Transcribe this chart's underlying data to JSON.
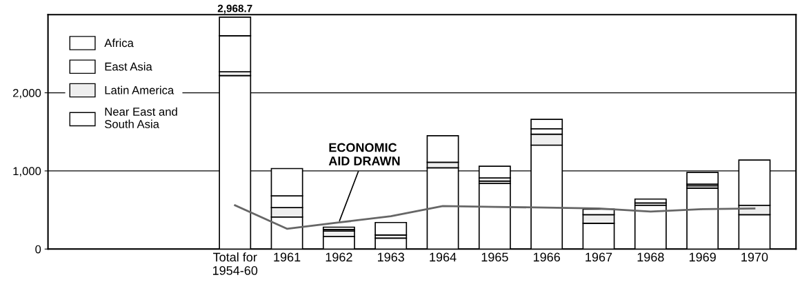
{
  "chart_data": {
    "type": "bar",
    "stacked": true,
    "categories": [
      "Total for\n1954-60",
      "1961",
      "1962",
      "1963",
      "1964",
      "1965",
      "1966",
      "1967",
      "1968",
      "1969",
      "1970"
    ],
    "series": [
      {
        "name": "Near East and\nSouth Asia",
        "color": "#ffffff",
        "values": [
          2220,
          410,
          160,
          140,
          1040,
          840,
          1330,
          330,
          560,
          780,
          440
        ]
      },
      {
        "name": "Latin America",
        "color": "#eeeeee",
        "values": [
          50,
          120,
          70,
          40,
          70,
          30,
          140,
          110,
          30,
          30,
          120
        ]
      },
      {
        "name": "East Asia",
        "color": "#ffffff",
        "values": [
          460,
          150,
          20,
          160,
          340,
          40,
          70,
          70,
          50,
          20,
          580
        ]
      },
      {
        "name": "Africa",
        "color": "#ffffff",
        "values": [
          238.7,
          350,
          30,
          null,
          null,
          150,
          120,
          null,
          null,
          150,
          null
        ]
      },
      {
        "type": "line",
        "color": "#666666",
        "values": [
          560,
          260,
          340,
          420,
          550,
          540,
          530,
          520,
          480,
          510,
          520
        ]
      }
    ],
    "totals": [
      "2,968.7",
      null,
      null,
      null,
      null,
      null,
      null,
      null,
      null,
      null,
      null
    ],
    "annotations": [
      {
        "text": "ECONOMIC\nAID DRAWN",
        "x": "1962",
        "y": 340
      }
    ],
    "ylim": [
      0,
      3000
    ],
    "yticks": [
      0,
      {
        "value": 1000,
        "label": "1,000"
      },
      {
        "value": 2000,
        "label": "2,000"
      }
    ],
    "grid": "y",
    "legend": "top left"
  }
}
